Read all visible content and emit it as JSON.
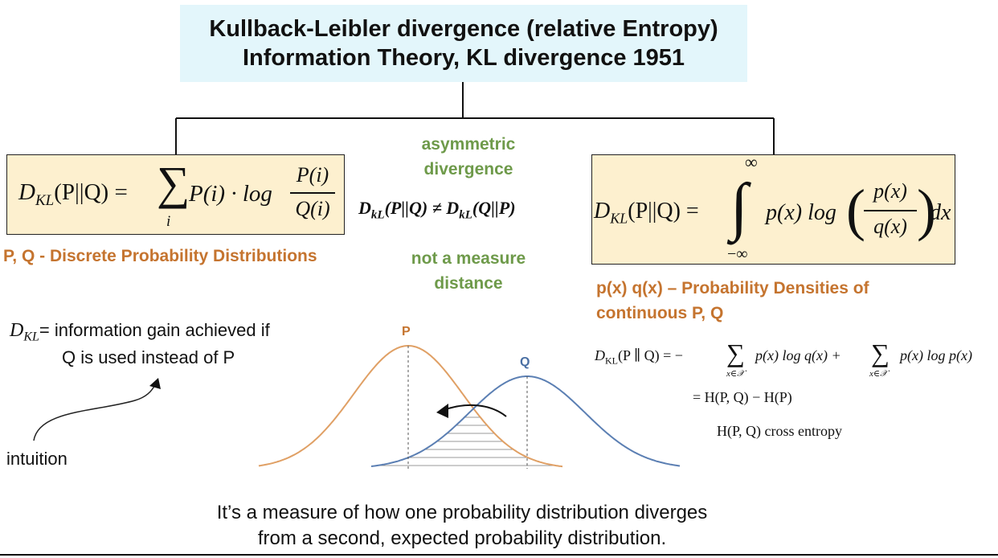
{
  "title": {
    "line1": "Kullback-Leibler divergence (relative Entropy)",
    "line2": "Information Theory, KL divergence 1951"
  },
  "left": {
    "formula": {
      "lhs": "D",
      "lhs_sub": "KL",
      "lhs_args": "(P||Q) =",
      "sum_symbol": "∑",
      "sum_index": "i",
      "term": "P(i) · log",
      "num": "P(i)",
      "den": "Q(i)"
    },
    "caption": "P, Q -  Discrete Probability Distributions"
  },
  "middle": {
    "asym_line1": "asymmetric",
    "asym_line2": "divergence",
    "inequality": "D",
    "ineq_sub1": "kL",
    "ineq_mid": "(P||Q) ≠ D",
    "ineq_sub2": "kL",
    "ineq_end": "(Q||P)",
    "notdist_line1": "not a measure",
    "notdist_line2": "distance"
  },
  "right": {
    "formula": {
      "lhs": "D",
      "lhs_sub": "KL",
      "lhs_args": "(P||Q) =",
      "upper": "∞",
      "lower": "−∞",
      "integral": "∫",
      "term": "p(x) log",
      "num": "p(x)",
      "den": "q(x)",
      "dx": "dx"
    },
    "caption_line1": "p(x) q(x) – Probability Densities of",
    "caption_line2": "continuous P, Q"
  },
  "info_gain": {
    "symbol": "D",
    "symbol_sub": "KL",
    "line1": "= information gain achieved if",
    "line2": "Q is used instead of P",
    "intuition": "intuition"
  },
  "curves": {
    "p_label": "P",
    "q_label": "Q",
    "p_color": "#e0a065",
    "q_color": "#5b7fb3"
  },
  "cross_entropy": {
    "row1_lhs": "D",
    "row1_lhs_sub": "KL",
    "row1_args": "(P ∥ Q) = −",
    "row1_sum1_term": "p(x) log q(x) +",
    "row1_sum2_term": "p(x) log p(x)",
    "sum_symbol": "∑",
    "sum_index": "x∈𝒳",
    "row2": "= H(P, Q) − H(P)",
    "row3": "H(P, Q) cross entropy"
  },
  "bottom_caption": {
    "line1": "It’s a measure of how one probability distribution diverges",
    "line2": "from a second, expected probability distribution."
  }
}
